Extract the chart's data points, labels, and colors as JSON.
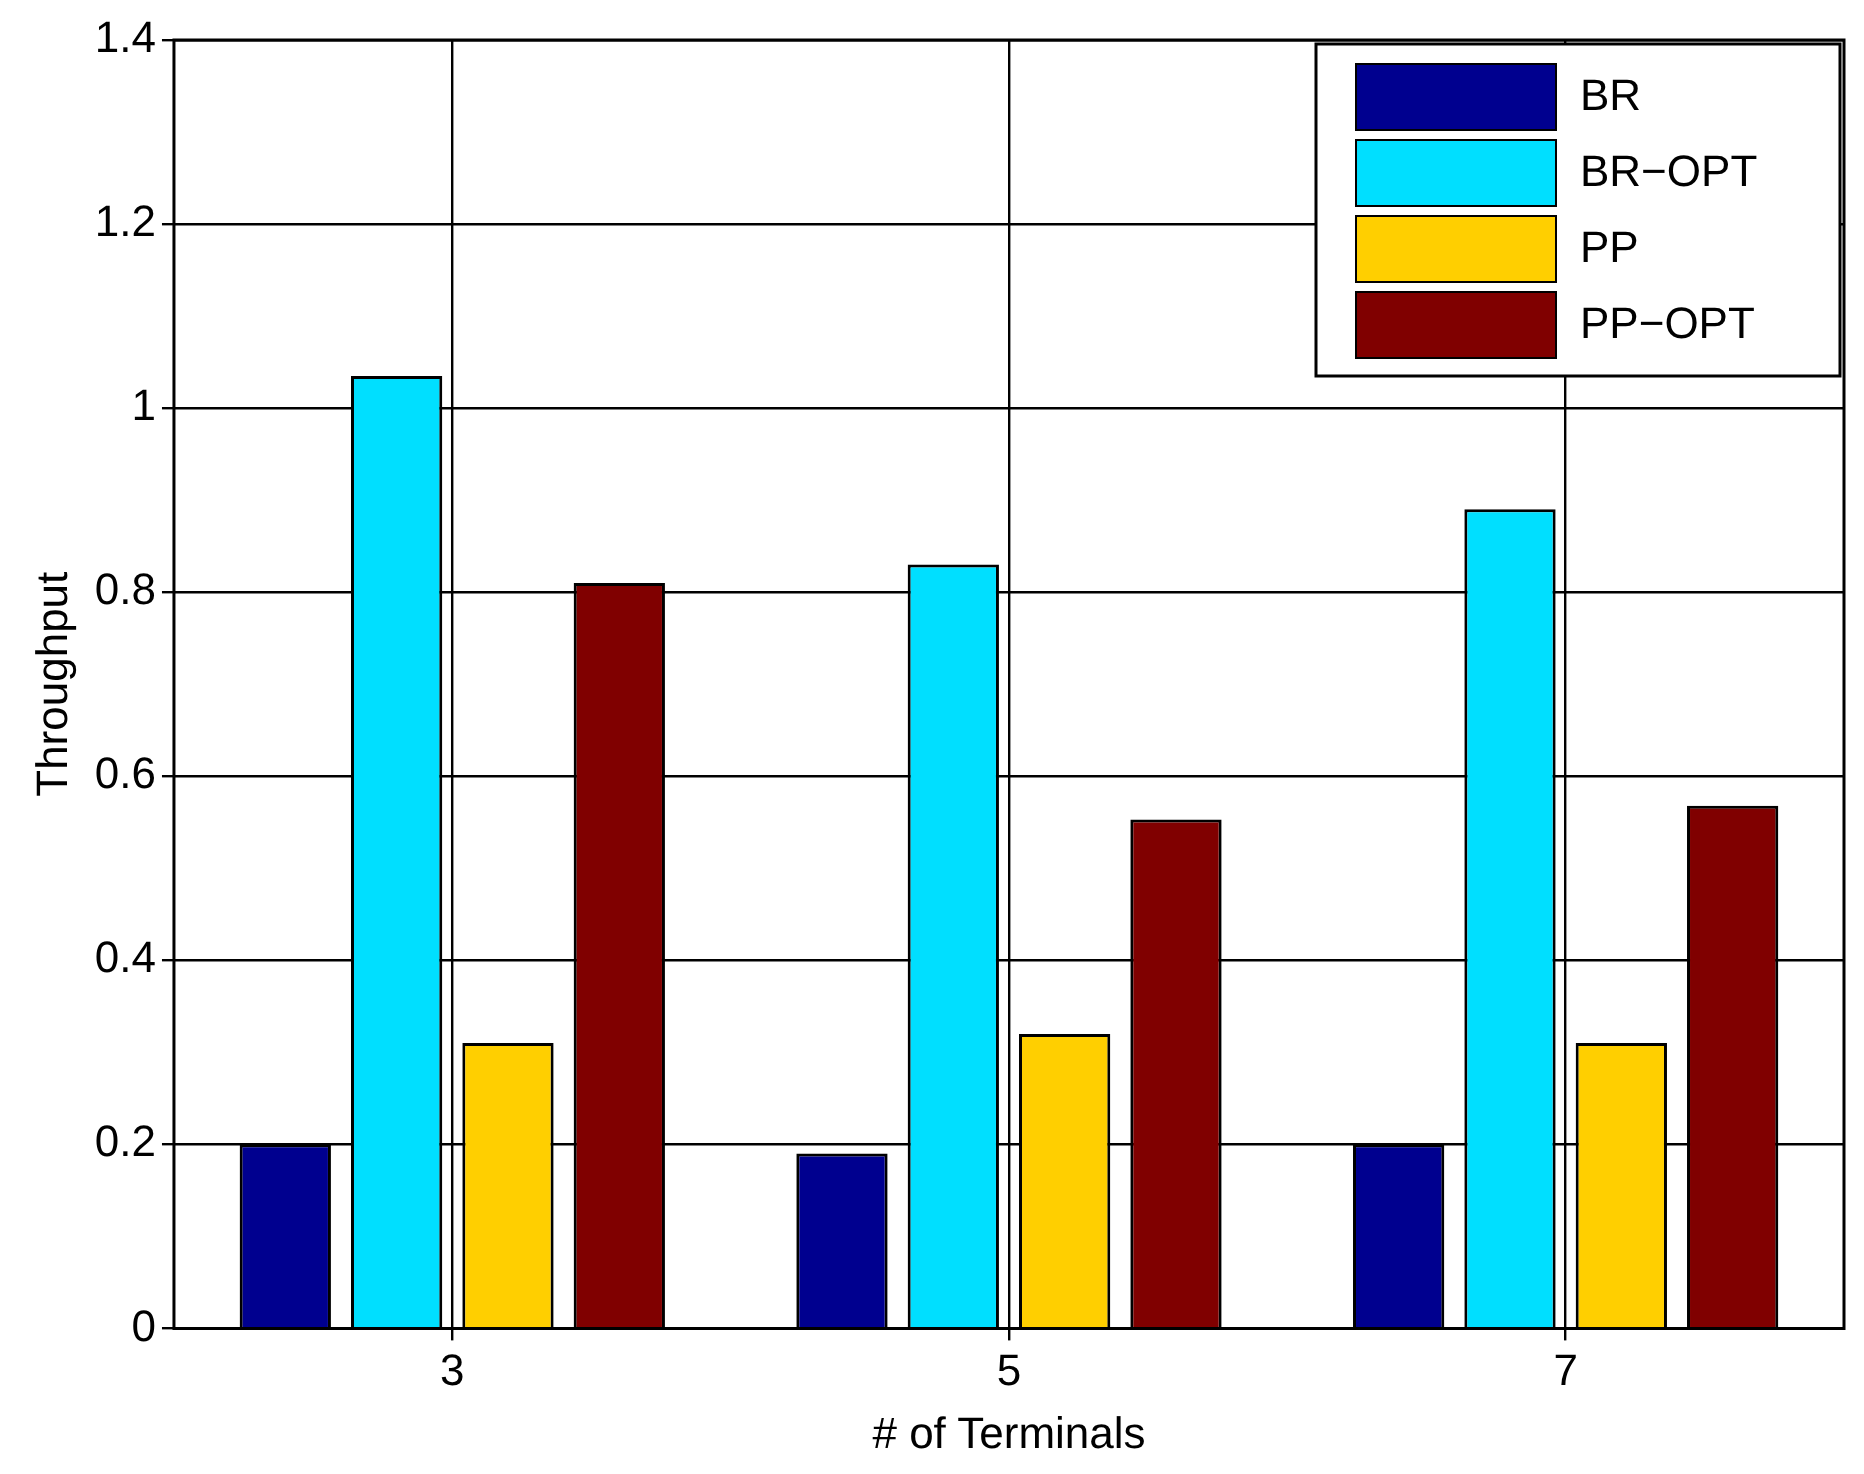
{
  "chart_data": {
    "type": "bar",
    "xlabel": "# of Terminals",
    "ylabel": "Throughput",
    "categories": [
      "3",
      "5",
      "7"
    ],
    "series": [
      {
        "name": "BR",
        "color": "#00008f",
        "values": [
          0.2,
          0.19,
          0.2
        ]
      },
      {
        "name": "BR−OPT",
        "color": "#00dfff",
        "values": [
          1.035,
          0.83,
          0.89
        ]
      },
      {
        "name": "PP",
        "color": "#ffcf00",
        "values": [
          0.31,
          0.32,
          0.31
        ]
      },
      {
        "name": "PP−OPT",
        "color": "#800000",
        "values": [
          0.81,
          0.553,
          0.568
        ]
      }
    ],
    "ylim": [
      0,
      1.4
    ],
    "yticks": [
      0,
      0.2,
      0.4,
      0.6,
      0.8,
      1,
      1.2,
      1.4
    ],
    "grid": true,
    "legend": "top right"
  }
}
